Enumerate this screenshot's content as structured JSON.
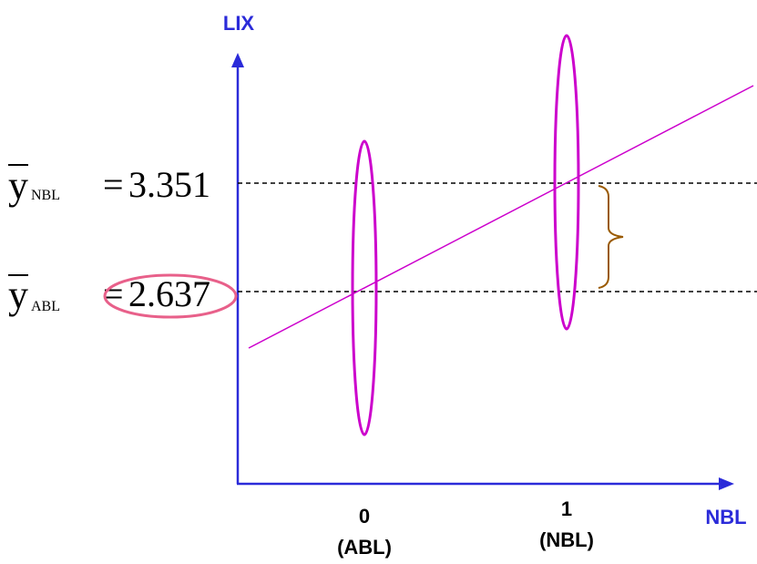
{
  "y_axis_title": "LIX",
  "x_axis_title": "NBL",
  "ticks": [
    {
      "value": "0",
      "group": "(ABL)"
    },
    {
      "value": "1",
      "group": "(NBL)"
    }
  ],
  "means": [
    {
      "symbol": "y",
      "subscript": "NBL",
      "equals": "=",
      "value": "3.351"
    },
    {
      "symbol": "y",
      "subscript": "ABL",
      "equals": "=",
      "value": "2.637"
    }
  ],
  "colors": {
    "axis": "#2b2bd9",
    "ellipse": "#cc00cc",
    "regression_line": "#cc00cc",
    "highlight_circle": "#e8608a",
    "brace": "#9a5a00",
    "dashed": "#000000"
  }
}
